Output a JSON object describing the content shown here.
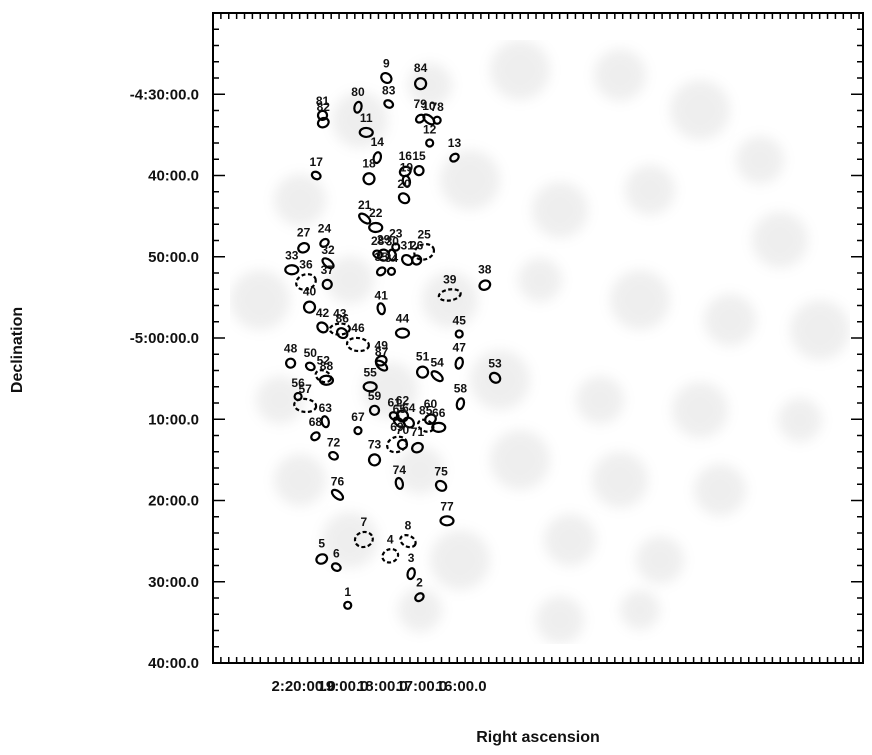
{
  "chart_data": {
    "type": "scatter",
    "title": "",
    "xlabel": "Right ascension",
    "ylabel": "Declination",
    "x_axis": {
      "units": "minutes of RA",
      "range": [
        2.3,
        -14.2
      ],
      "ticks": [
        {
          "value": 0,
          "label": "2:20:00.0"
        },
        {
          "value": -1,
          "label": "19:00.0"
        },
        {
          "value": -2,
          "label": "18:00.0"
        },
        {
          "value": -3,
          "label": "17:00.0"
        },
        {
          "value": -4,
          "label": "16:00.0"
        }
      ]
    },
    "y_axis": {
      "units": "arcmin",
      "range": [
        -40,
        40
      ],
      "ticks": [
        {
          "value": 30,
          "label": "-4:30:00.0"
        },
        {
          "value": 20,
          "label": "40:00.0"
        },
        {
          "value": 10,
          "label": "50:00.0"
        },
        {
          "value": 0,
          "label": "-5:00:00.0"
        },
        {
          "value": -10,
          "label": "10:00.0"
        },
        {
          "value": -20,
          "label": "20:00.0"
        },
        {
          "value": -30,
          "label": "30:00.0"
        },
        {
          "value": -40,
          "label": "40:00.0"
        }
      ]
    },
    "grid": false,
    "sources": [
      {
        "id": "1",
        "x": -1.12,
        "y": -32.9,
        "dashed": false
      },
      {
        "id": "2",
        "x": -2.94,
        "y": -31.9,
        "dashed": false
      },
      {
        "id": "3",
        "x": -2.73,
        "y": -29.0,
        "dashed": false
      },
      {
        "id": "4",
        "x": -2.2,
        "y": -26.8,
        "dashed": true
      },
      {
        "id": "5",
        "x": -0.46,
        "y": -27.2,
        "dashed": false
      },
      {
        "id": "6",
        "x": -0.83,
        "y": -28.2,
        "dashed": false
      },
      {
        "id": "7",
        "x": -1.53,
        "y": -24.8,
        "dashed": true
      },
      {
        "id": "8",
        "x": -2.65,
        "y": -25.0,
        "dashed": true
      },
      {
        "id": "9",
        "x": -2.1,
        "y": 32.0,
        "dashed": false
      },
      {
        "id": "10",
        "x": -3.18,
        "y": 26.9,
        "dashed": false
      },
      {
        "id": "11",
        "x": -1.59,
        "y": 25.3,
        "dashed": false
      },
      {
        "id": "12",
        "x": -3.2,
        "y": 24.0,
        "dashed": false
      },
      {
        "id": "13",
        "x": -3.83,
        "y": 22.2,
        "dashed": false
      },
      {
        "id": "14",
        "x": -1.87,
        "y": 22.2,
        "dashed": false
      },
      {
        "id": "15",
        "x": -2.93,
        "y": 20.6,
        "dashed": false
      },
      {
        "id": "16",
        "x": -2.58,
        "y": 20.5,
        "dashed": false
      },
      {
        "id": "17",
        "x": -0.32,
        "y": 20.0,
        "dashed": false
      },
      {
        "id": "18",
        "x": -1.66,
        "y": 19.6,
        "dashed": false
      },
      {
        "id": "19",
        "x": -2.61,
        "y": 19.3,
        "dashed": false
      },
      {
        "id": "20",
        "x": -2.55,
        "y": 17.2,
        "dashed": false
      },
      {
        "id": "21",
        "x": -1.55,
        "y": 14.7,
        "dashed": false
      },
      {
        "id": "22",
        "x": -1.83,
        "y": 13.6,
        "dashed": false
      },
      {
        "id": "23",
        "x": -2.34,
        "y": 11.2,
        "dashed": false
      },
      {
        "id": "24",
        "x": -0.53,
        "y": 11.7,
        "dashed": false
      },
      {
        "id": "25",
        "x": -3.06,
        "y": 10.6,
        "dashed": true
      },
      {
        "id": "26",
        "x": -2.87,
        "y": 9.6,
        "dashed": false
      },
      {
        "id": "27",
        "x": 0.0,
        "y": 11.1,
        "dashed": false
      },
      {
        "id": "28",
        "x": -1.88,
        "y": 10.3,
        "dashed": false
      },
      {
        "id": "29",
        "x": -2.03,
        "y": 10.2,
        "dashed": false
      },
      {
        "id": "30",
        "x": -2.25,
        "y": 10.2,
        "dashed": false
      },
      {
        "id": "31",
        "x": -2.63,
        "y": 9.6,
        "dashed": false
      },
      {
        "id": "32",
        "x": -0.62,
        "y": 9.2,
        "dashed": false
      },
      {
        "id": "33",
        "x": 0.3,
        "y": 8.4,
        "dashed": false
      },
      {
        "id": "34",
        "x": -2.23,
        "y": 8.2,
        "dashed": false
      },
      {
        "id": "35",
        "x": -1.97,
        "y": 8.2,
        "dashed": false
      },
      {
        "id": "36",
        "x": -0.06,
        "y": 6.9,
        "dashed": true
      },
      {
        "id": "37",
        "x": -0.6,
        "y": 6.6,
        "dashed": false
      },
      {
        "id": "38",
        "x": -4.6,
        "y": 6.5,
        "dashed": false
      },
      {
        "id": "39",
        "x": -3.71,
        "y": 5.3,
        "dashed": true
      },
      {
        "id": "40",
        "x": -0.15,
        "y": 3.8,
        "dashed": false
      },
      {
        "id": "41",
        "x": -1.97,
        "y": 3.6,
        "dashed": false
      },
      {
        "id": "42",
        "x": -0.48,
        "y": 1.3,
        "dashed": false
      },
      {
        "id": "43",
        "x": -0.92,
        "y": 1.1,
        "dashed": true
      },
      {
        "id": "44",
        "x": -2.51,
        "y": 0.6,
        "dashed": false
      },
      {
        "id": "45",
        "x": -3.95,
        "y": 0.5,
        "dashed": false
      },
      {
        "id": "46",
        "x": -1.38,
        "y": -0.8,
        "dashed": true
      },
      {
        "id": "47",
        "x": -3.95,
        "y": -3.1,
        "dashed": false
      },
      {
        "id": "48",
        "x": 0.33,
        "y": -3.1,
        "dashed": false
      },
      {
        "id": "49",
        "x": -1.97,
        "y": -2.8,
        "dashed": false
      },
      {
        "id": "50",
        "x": -0.17,
        "y": -3.5,
        "dashed": false
      },
      {
        "id": "51",
        "x": -3.02,
        "y": -4.2,
        "dashed": false
      },
      {
        "id": "52",
        "x": -0.5,
        "y": -4.7,
        "dashed": true
      },
      {
        "id": "53",
        "x": -4.86,
        "y": -4.9,
        "dashed": false
      },
      {
        "id": "54",
        "x": -3.39,
        "y": -4.7,
        "dashed": false
      },
      {
        "id": "55",
        "x": -1.69,
        "y": -6.0,
        "dashed": false
      },
      {
        "id": "56",
        "x": 0.14,
        "y": -7.2,
        "dashed": false
      },
      {
        "id": "57",
        "x": -0.04,
        "y": -8.3,
        "dashed": true
      },
      {
        "id": "58",
        "x": -3.98,
        "y": -8.1,
        "dashed": false
      },
      {
        "id": "59",
        "x": -1.8,
        "y": -8.9,
        "dashed": false
      },
      {
        "id": "60",
        "x": -3.22,
        "y": -10.0,
        "dashed": false
      },
      {
        "id": "61",
        "x": -2.3,
        "y": -9.6,
        "dashed": false
      },
      {
        "id": "62",
        "x": -2.51,
        "y": -9.6,
        "dashed": false
      },
      {
        "id": "63",
        "x": -0.55,
        "y": -10.3,
        "dashed": false
      },
      {
        "id": "64",
        "x": -2.67,
        "y": -10.4,
        "dashed": false
      },
      {
        "id": "65",
        "x": -2.43,
        "y": -10.4,
        "dashed": false
      },
      {
        "id": "66",
        "x": -3.43,
        "y": -11.0,
        "dashed": false
      },
      {
        "id": "67",
        "x": -1.38,
        "y": -11.4,
        "dashed": false
      },
      {
        "id": "68",
        "x": -0.3,
        "y": -12.1,
        "dashed": false
      },
      {
        "id": "69",
        "x": -2.37,
        "y": -13.1,
        "dashed": true
      },
      {
        "id": "70",
        "x": -2.51,
        "y": -13.1,
        "dashed": false
      },
      {
        "id": "71",
        "x": -2.89,
        "y": -13.5,
        "dashed": false
      },
      {
        "id": "72",
        "x": -0.76,
        "y": -14.5,
        "dashed": false
      },
      {
        "id": "73",
        "x": -1.8,
        "y": -15.0,
        "dashed": false
      },
      {
        "id": "74",
        "x": -2.43,
        "y": -17.9,
        "dashed": false
      },
      {
        "id": "75",
        "x": -3.49,
        "y": -18.2,
        "dashed": false
      },
      {
        "id": "76",
        "x": -0.86,
        "y": -19.3,
        "dashed": false
      },
      {
        "id": "77",
        "x": -3.64,
        "y": -22.5,
        "dashed": false
      },
      {
        "id": "78",
        "x": -3.39,
        "y": 26.8,
        "dashed": false
      },
      {
        "id": "79",
        "x": -2.96,
        "y": 27.0,
        "dashed": false
      },
      {
        "id": "80",
        "x": -1.38,
        "y": 28.4,
        "dashed": false
      },
      {
        "id": "81",
        "x": -0.48,
        "y": 27.4,
        "dashed": false
      },
      {
        "id": "82",
        "x": -0.5,
        "y": 26.5,
        "dashed": false
      },
      {
        "id": "83",
        "x": -2.16,
        "y": 28.8,
        "dashed": false
      },
      {
        "id": "84",
        "x": -2.97,
        "y": 31.3,
        "dashed": false
      },
      {
        "id": "85",
        "x": -3.1,
        "y": -10.8,
        "dashed": true
      },
      {
        "id": "86",
        "x": -0.98,
        "y": 0.6,
        "dashed": false
      },
      {
        "id": "87",
        "x": -1.98,
        "y": -3.4,
        "dashed": false
      },
      {
        "id": "88",
        "x": -0.58,
        "y": -5.2,
        "dashed": false
      }
    ]
  }
}
